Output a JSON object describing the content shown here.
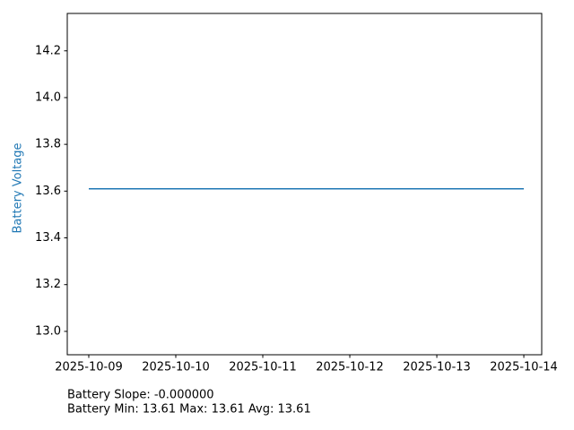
{
  "chart_data": {
    "type": "line",
    "ylabel": "Battery Voltage",
    "x": [
      "2025-10-09",
      "2025-10-14"
    ],
    "values": [
      13.61,
      13.61
    ],
    "color": "#1f77b4",
    "xlim": [
      "2025-10-08T18:04",
      "2025-10-14T04:56"
    ],
    "xticks": [
      "2025-10-09",
      "2025-10-10",
      "2025-10-11",
      "2025-10-12",
      "2025-10-13",
      "2025-10-14"
    ],
    "ylim": [
      12.9,
      14.36
    ],
    "yticks": [
      {
        "value": 13,
        "label": "13.0"
      },
      13.2,
      13.4,
      13.6,
      13.8,
      {
        "value": 14,
        "label": "14.0"
      },
      14.2
    ],
    "annotations": [
      "Battery Slope: -0.000000",
      "Battery Min: 13.61 Max: 13.61 Avg: 13.61"
    ]
  }
}
